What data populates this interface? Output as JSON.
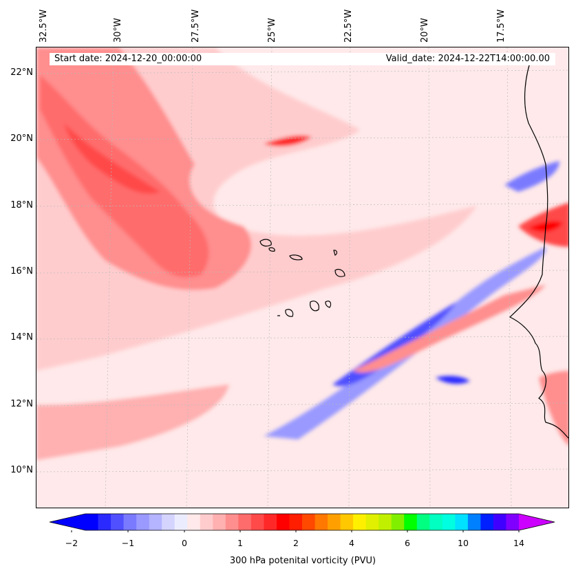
{
  "map": {
    "start_date": "Start date: 2024-12-20_00:00:00",
    "valid_date": "Valid_date: 2024-12-22T14:00:00.00",
    "lon_labels": [
      "32.5°W",
      "30°W",
      "27.5°W",
      "25°W",
      "22.5°W",
      "20°W",
      "17.5°W"
    ],
    "lat_labels": [
      "22°N",
      "20°N",
      "18°N",
      "16°N",
      "14°N",
      "12°N",
      "10°N"
    ],
    "extent": {
      "lon_min": -32.6,
      "lon_max": -15.3,
      "lat_min": 8.9,
      "lat_max": 22.8
    },
    "background_color": "#ffe9ea",
    "coastline_color": "#000000"
  },
  "colorbar": {
    "label": "300 hPa potenital vorticity (PVU)",
    "tick_labels": [
      "−2",
      "−1",
      "0",
      "1",
      "2",
      "4",
      "6",
      "10",
      "14"
    ],
    "colors": [
      "#0000ff",
      "#2a2aff",
      "#5050ff",
      "#7a7aff",
      "#9999ff",
      "#b4b4ff",
      "#d4d4ff",
      "#ececff",
      "#ffe9ea",
      "#ffcccd",
      "#ffb0b0",
      "#ff8e8e",
      "#ff6c6c",
      "#ff4a4a",
      "#ff2828",
      "#ff0000",
      "#ff1e00",
      "#ff4800",
      "#ff7800",
      "#ffa000",
      "#ffc800",
      "#fff000",
      "#e0f000",
      "#c0f000",
      "#80f000",
      "#00ff00",
      "#00ff80",
      "#00ffc0",
      "#00ffe0",
      "#00e0ff",
      "#0080ff",
      "#0020ff",
      "#4000ff",
      "#8000ff"
    ],
    "extend_left_color": "#0000ff",
    "extend_right_color": "#cc00ff"
  }
}
